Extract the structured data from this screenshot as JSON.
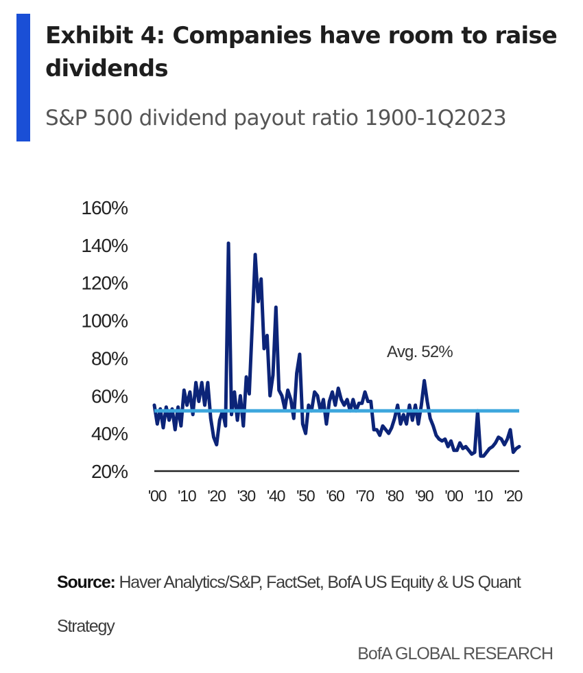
{
  "header": {
    "title": "Exhibit 4: Companies have room to raise dividends",
    "subtitle": "S&P 500 dividend payout ratio 1900-1Q2023",
    "accent_color": "#1a4fd6"
  },
  "chart_data": {
    "type": "line",
    "title": "",
    "xlabel": "",
    "ylabel": "",
    "xlim": [
      1900,
      2023
    ],
    "ylim": [
      20,
      160
    ],
    "y_ticks": [
      "20%",
      "40%",
      "60%",
      "80%",
      "100%",
      "120%",
      "140%",
      "160%"
    ],
    "x_ticks": [
      {
        "year": 1900,
        "label": "'00"
      },
      {
        "year": 1910,
        "label": "'10"
      },
      {
        "year": 1920,
        "label": "'20"
      },
      {
        "year": 1930,
        "label": "'30"
      },
      {
        "year": 1940,
        "label": "'40"
      },
      {
        "year": 1950,
        "label": "'50"
      },
      {
        "year": 1960,
        "label": "'60"
      },
      {
        "year": 1970,
        "label": "'70"
      },
      {
        "year": 1980,
        "label": "'80"
      },
      {
        "year": 1990,
        "label": "'90"
      },
      {
        "year": 2000,
        "label": "'00"
      },
      {
        "year": 2010,
        "label": "'10"
      },
      {
        "year": 2020,
        "label": "'20"
      }
    ],
    "grid": false,
    "legend": "none",
    "series": [
      {
        "color": "#0c2478",
        "points": [
          [
            1900,
            55
          ],
          [
            1901,
            45
          ],
          [
            1902,
            53
          ],
          [
            1903,
            43
          ],
          [
            1904,
            54
          ],
          [
            1905,
            47
          ],
          [
            1906,
            53
          ],
          [
            1907,
            42
          ],
          [
            1908,
            54
          ],
          [
            1909,
            44
          ],
          [
            1910,
            63
          ],
          [
            1911,
            55
          ],
          [
            1912,
            62
          ],
          [
            1913,
            50
          ],
          [
            1914,
            67
          ],
          [
            1915,
            57
          ],
          [
            1916,
            67
          ],
          [
            1917,
            55
          ],
          [
            1918,
            67
          ],
          [
            1919,
            48
          ],
          [
            1920,
            38
          ],
          [
            1921,
            34
          ],
          [
            1922,
            47
          ],
          [
            1923,
            52
          ],
          [
            1924,
            44
          ],
          [
            1925,
            141
          ],
          [
            1926,
            50
          ],
          [
            1927,
            62
          ],
          [
            1928,
            47
          ],
          [
            1929,
            60
          ],
          [
            1930,
            44
          ],
          [
            1931,
            70
          ],
          [
            1932,
            61
          ],
          [
            1933,
            97
          ],
          [
            1934,
            135
          ],
          [
            1935,
            110
          ],
          [
            1936,
            122
          ],
          [
            1937,
            85
          ],
          [
            1938,
            92
          ],
          [
            1939,
            60
          ],
          [
            1940,
            71
          ],
          [
            1941,
            107
          ],
          [
            1942,
            63
          ],
          [
            1943,
            60
          ],
          [
            1944,
            53
          ],
          [
            1945,
            63
          ],
          [
            1946,
            58
          ],
          [
            1947,
            48
          ],
          [
            1948,
            72
          ],
          [
            1949,
            82
          ],
          [
            1950,
            45
          ],
          [
            1951,
            40
          ],
          [
            1952,
            55
          ],
          [
            1953,
            52
          ],
          [
            1954,
            62
          ],
          [
            1955,
            60
          ],
          [
            1956,
            52
          ],
          [
            1957,
            58
          ],
          [
            1958,
            45
          ],
          [
            1959,
            57
          ],
          [
            1960,
            62
          ],
          [
            1961,
            55
          ],
          [
            1962,
            64
          ],
          [
            1963,
            58
          ],
          [
            1964,
            55
          ],
          [
            1965,
            58
          ],
          [
            1966,
            52
          ],
          [
            1967,
            58
          ],
          [
            1968,
            52
          ],
          [
            1969,
            56
          ],
          [
            1970,
            56
          ],
          [
            1971,
            62
          ],
          [
            1972,
            57
          ],
          [
            1973,
            57
          ],
          [
            1974,
            42
          ],
          [
            1975,
            42
          ],
          [
            1976,
            39
          ],
          [
            1977,
            44
          ],
          [
            1978,
            42
          ],
          [
            1979,
            40
          ],
          [
            1980,
            43
          ],
          [
            1981,
            48
          ],
          [
            1982,
            55
          ],
          [
            1983,
            45
          ],
          [
            1984,
            50
          ],
          [
            1985,
            45
          ],
          [
            1986,
            55
          ],
          [
            1987,
            47
          ],
          [
            1988,
            55
          ],
          [
            1989,
            45
          ],
          [
            1990,
            55
          ],
          [
            1991,
            68
          ],
          [
            1992,
            57
          ],
          [
            1993,
            48
          ],
          [
            1994,
            44
          ],
          [
            1995,
            39
          ],
          [
            1996,
            37
          ],
          [
            1997,
            36
          ],
          [
            1998,
            37
          ],
          [
            1999,
            33
          ],
          [
            2000,
            36
          ],
          [
            2001,
            31
          ],
          [
            2002,
            31
          ],
          [
            2003,
            35
          ],
          [
            2004,
            32
          ],
          [
            2005,
            33
          ],
          [
            2006,
            31
          ],
          [
            2007,
            29
          ],
          [
            2008,
            30
          ],
          [
            2009,
            52
          ],
          [
            2010,
            28
          ],
          [
            2011,
            28
          ],
          [
            2012,
            30
          ],
          [
            2013,
            32
          ],
          [
            2014,
            33
          ],
          [
            2015,
            35
          ],
          [
            2016,
            38
          ],
          [
            2017,
            37
          ],
          [
            2018,
            34
          ],
          [
            2019,
            37
          ],
          [
            2020,
            42
          ],
          [
            2021,
            30
          ],
          [
            2022,
            32
          ],
          [
            2023,
            33
          ]
        ]
      }
    ],
    "reference_line": {
      "value": 52,
      "label": "Avg. 52%",
      "color": "#3da7dd"
    }
  },
  "source": {
    "label": "Source:",
    "text": "Haver Analytics/S&P, FactSet, BofA US Equity & US Quant Strategy"
  },
  "footer": {
    "brand": "BofA GLOBAL RESEARCH"
  }
}
